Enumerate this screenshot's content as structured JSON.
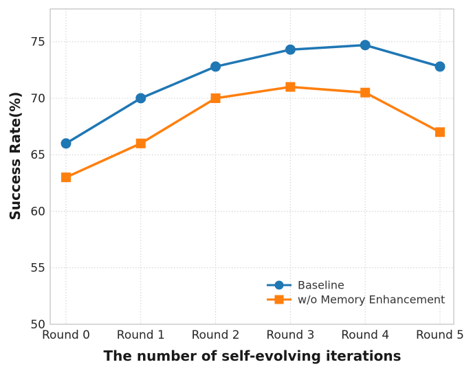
{
  "chart_data": {
    "type": "line",
    "title": "",
    "xlabel": "The number of self-evolving iterations",
    "ylabel": "Success Rate(%)",
    "categories": [
      "Round 0",
      "Round 1",
      "Round 2",
      "Round 3",
      "Round 4",
      "Round 5"
    ],
    "series": [
      {
        "name": "Baseline",
        "values": [
          66,
          70,
          72.8,
          74.3,
          74.7,
          72.8
        ],
        "color": "#1f77b4",
        "marker": "circle"
      },
      {
        "name": "w/o Memory Enhancement",
        "values": [
          63,
          66,
          70,
          71,
          70.5,
          67
        ],
        "color": "#ff7f0e",
        "marker": "square"
      }
    ],
    "yticks": [
      50,
      55,
      60,
      65,
      70,
      75
    ],
    "ylim": [
      50,
      77.9
    ],
    "grid": true,
    "grid_style": "dotted",
    "legend_position": "lower right"
  },
  "style": {
    "grid_color": "#cccccc",
    "spine_color": "#c8c8c8",
    "tick_label_color": "#262626",
    "legend_text_color": "#333333",
    "background": "#ffffff"
  }
}
